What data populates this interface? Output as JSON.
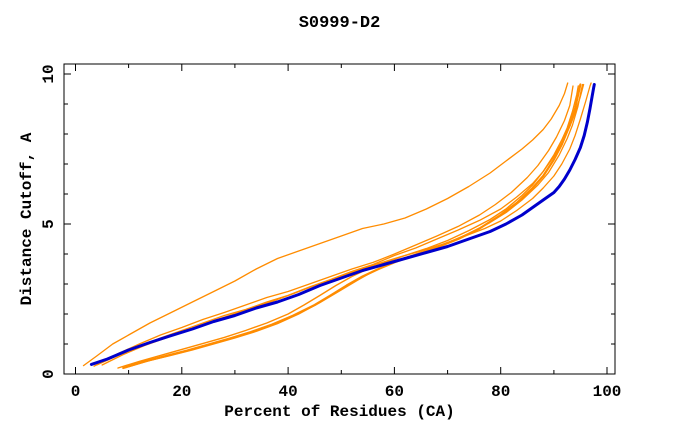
{
  "title": "S0999-D2",
  "chart_data": {
    "type": "line",
    "title": "S0999-D2",
    "xlabel": "Percent of Residues (CA)",
    "ylabel": "Distance Cutoff, A",
    "xlim": [
      -2.16,
      101.5
    ],
    "ylim": [
      0,
      10.333
    ],
    "grid": false,
    "legend": "none",
    "border_color": "#000000",
    "x_ticks": {
      "major": [
        0,
        20,
        40,
        60,
        80,
        100
      ],
      "minor": [
        10,
        30,
        50,
        70,
        90
      ]
    },
    "y_ticks": {
      "major": [
        0,
        5,
        10
      ],
      "minor": [
        1,
        2,
        3,
        4,
        6,
        7,
        8,
        9
      ]
    },
    "colors": {
      "model": "#ff8c00",
      "highlight": "#0000cc"
    },
    "series": [
      {
        "name": "model-outlier",
        "color": "#ff8c00",
        "width": 1.3,
        "points": [
          [
            1.5,
            0.28
          ],
          [
            4,
            0.6
          ],
          [
            7,
            1.0
          ],
          [
            10,
            1.3
          ],
          [
            14,
            1.7
          ],
          [
            18,
            2.05
          ],
          [
            22,
            2.4
          ],
          [
            26,
            2.75
          ],
          [
            30,
            3.1
          ],
          [
            34,
            3.5
          ],
          [
            38,
            3.85
          ],
          [
            42,
            4.1
          ],
          [
            46,
            4.35
          ],
          [
            50,
            4.6
          ],
          [
            54,
            4.85
          ],
          [
            58,
            5.0
          ],
          [
            62,
            5.2
          ],
          [
            66,
            5.5
          ],
          [
            70,
            5.85
          ],
          [
            74,
            6.25
          ],
          [
            78,
            6.7
          ],
          [
            81,
            7.1
          ],
          [
            84,
            7.5
          ],
          [
            86,
            7.8
          ],
          [
            88,
            8.15
          ],
          [
            89.5,
            8.5
          ],
          [
            91,
            8.95
          ],
          [
            92,
            9.35
          ],
          [
            92.6,
            9.7
          ]
        ]
      },
      {
        "name": "model-2",
        "color": "#ff8c00",
        "width": 1.3,
        "points": [
          [
            4,
            0.3
          ],
          [
            8,
            0.62
          ],
          [
            12,
            0.92
          ],
          [
            16,
            1.2
          ],
          [
            20,
            1.45
          ],
          [
            24,
            1.7
          ],
          [
            28,
            1.95
          ],
          [
            32,
            2.15
          ],
          [
            36,
            2.4
          ],
          [
            40,
            2.62
          ],
          [
            44,
            2.9
          ],
          [
            48,
            3.15
          ],
          [
            52,
            3.42
          ],
          [
            56,
            3.65
          ],
          [
            60,
            3.95
          ],
          [
            64,
            4.2
          ],
          [
            68,
            4.5
          ],
          [
            72,
            4.8
          ],
          [
            76,
            5.12
          ],
          [
            80,
            5.5
          ],
          [
            83,
            5.9
          ],
          [
            86,
            6.35
          ],
          [
            88,
            6.75
          ],
          [
            90,
            7.25
          ],
          [
            91.5,
            7.7
          ],
          [
            93,
            8.25
          ],
          [
            94,
            8.7
          ],
          [
            95,
            9.25
          ],
          [
            95.6,
            9.65
          ]
        ]
      },
      {
        "name": "model-3",
        "color": "#ff8c00",
        "width": 1.3,
        "points": [
          [
            3.5,
            0.26
          ],
          [
            8,
            0.68
          ],
          [
            12,
            1.0
          ],
          [
            16,
            1.3
          ],
          [
            20,
            1.55
          ],
          [
            24,
            1.82
          ],
          [
            28,
            2.05
          ],
          [
            32,
            2.3
          ],
          [
            36,
            2.55
          ],
          [
            40,
            2.75
          ],
          [
            44,
            3.0
          ],
          [
            48,
            3.25
          ],
          [
            52,
            3.5
          ],
          [
            56,
            3.72
          ],
          [
            60,
            4.0
          ],
          [
            64,
            4.3
          ],
          [
            68,
            4.6
          ],
          [
            72,
            4.92
          ],
          [
            76,
            5.3
          ],
          [
            79,
            5.65
          ],
          [
            82,
            6.05
          ],
          [
            85,
            6.55
          ],
          [
            87,
            6.95
          ],
          [
            89,
            7.45
          ],
          [
            90.5,
            7.9
          ],
          [
            92,
            8.45
          ],
          [
            93,
            8.95
          ],
          [
            93.6,
            9.6
          ]
        ]
      },
      {
        "name": "model-4",
        "color": "#ff8c00",
        "width": 1.4,
        "points": [
          [
            8,
            0.2
          ],
          [
            12,
            0.42
          ],
          [
            16,
            0.62
          ],
          [
            20,
            0.82
          ],
          [
            24,
            1.02
          ],
          [
            28,
            1.22
          ],
          [
            32,
            1.45
          ],
          [
            36,
            1.7
          ],
          [
            40,
            2.0
          ],
          [
            43,
            2.3
          ],
          [
            46,
            2.62
          ],
          [
            49,
            2.95
          ],
          [
            52,
            3.25
          ],
          [
            55,
            3.5
          ],
          [
            58,
            3.7
          ],
          [
            62,
            3.95
          ],
          [
            66,
            4.18
          ],
          [
            70,
            4.45
          ],
          [
            74,
            4.78
          ],
          [
            78,
            5.15
          ],
          [
            81,
            5.5
          ],
          [
            84,
            5.95
          ],
          [
            86,
            6.3
          ],
          [
            88,
            6.75
          ],
          [
            90,
            7.3
          ],
          [
            91.5,
            7.8
          ],
          [
            92.5,
            8.2
          ],
          [
            93.5,
            8.75
          ],
          [
            94.3,
            9.3
          ],
          [
            94.6,
            9.6
          ]
        ]
      },
      {
        "name": "model-5",
        "color": "#ff8c00",
        "width": 2.2,
        "points": [
          [
            9,
            0.2
          ],
          [
            13,
            0.42
          ],
          [
            17,
            0.6
          ],
          [
            21,
            0.78
          ],
          [
            25,
            0.98
          ],
          [
            29,
            1.18
          ],
          [
            33,
            1.4
          ],
          [
            37,
            1.65
          ],
          [
            41,
            1.95
          ],
          [
            45,
            2.3
          ],
          [
            48,
            2.62
          ],
          [
            51,
            2.95
          ],
          [
            54,
            3.25
          ],
          [
            57,
            3.5
          ],
          [
            60,
            3.72
          ],
          [
            64,
            3.98
          ],
          [
            68,
            4.22
          ],
          [
            72,
            4.5
          ],
          [
            76,
            4.85
          ],
          [
            80,
            5.3
          ],
          [
            83,
            5.7
          ],
          [
            86,
            6.2
          ],
          [
            88,
            6.6
          ],
          [
            90,
            7.15
          ],
          [
            91.5,
            7.65
          ],
          [
            93,
            8.3
          ],
          [
            94,
            8.85
          ],
          [
            94.8,
            9.5
          ],
          [
            95,
            9.65
          ]
        ]
      },
      {
        "name": "model-6",
        "color": "#ff8c00",
        "width": 1.3,
        "points": [
          [
            10,
            0.24
          ],
          [
            14,
            0.45
          ],
          [
            18,
            0.62
          ],
          [
            22,
            0.8
          ],
          [
            26,
            1.0
          ],
          [
            30,
            1.2
          ],
          [
            34,
            1.42
          ],
          [
            38,
            1.68
          ],
          [
            42,
            2.0
          ],
          [
            46,
            2.38
          ],
          [
            50,
            2.8
          ],
          [
            53,
            3.12
          ],
          [
            56,
            3.42
          ],
          [
            59,
            3.65
          ],
          [
            62,
            3.88
          ],
          [
            66,
            4.1
          ],
          [
            70,
            4.38
          ],
          [
            74,
            4.68
          ],
          [
            78,
            5.05
          ],
          [
            81,
            5.38
          ],
          [
            84,
            5.8
          ],
          [
            87,
            6.3
          ],
          [
            89,
            6.72
          ],
          [
            91,
            7.3
          ],
          [
            92.5,
            7.85
          ],
          [
            93.5,
            8.3
          ],
          [
            94.5,
            8.9
          ],
          [
            95.2,
            9.5
          ],
          [
            95.4,
            9.65
          ]
        ]
      },
      {
        "name": "model-7",
        "color": "#ff8c00",
        "width": 1.3,
        "points": [
          [
            5,
            0.3
          ],
          [
            9,
            0.65
          ],
          [
            13,
            0.95
          ],
          [
            17,
            1.2
          ],
          [
            21,
            1.45
          ],
          [
            25,
            1.72
          ],
          [
            29,
            1.95
          ],
          [
            33,
            2.18
          ],
          [
            37,
            2.42
          ],
          [
            41,
            2.68
          ],
          [
            45,
            2.95
          ],
          [
            49,
            3.2
          ],
          [
            53,
            3.45
          ],
          [
            57,
            3.68
          ],
          [
            61,
            3.9
          ],
          [
            65,
            4.1
          ],
          [
            69,
            4.32
          ],
          [
            73,
            4.58
          ],
          [
            77,
            4.85
          ],
          [
            80,
            5.1
          ],
          [
            83,
            5.45
          ],
          [
            86,
            5.85
          ],
          [
            88,
            6.2
          ],
          [
            90,
            6.6
          ],
          [
            91.5,
            7.0
          ],
          [
            93,
            7.5
          ],
          [
            94,
            7.95
          ],
          [
            95,
            8.5
          ],
          [
            96,
            9.1
          ],
          [
            96.8,
            9.6
          ],
          [
            97,
            9.7
          ]
        ]
      },
      {
        "name": "highlighted-model",
        "color": "#0000cc",
        "width": 3,
        "points": [
          [
            3,
            0.32
          ],
          [
            6,
            0.5
          ],
          [
            10,
            0.8
          ],
          [
            14,
            1.05
          ],
          [
            18,
            1.28
          ],
          [
            22,
            1.5
          ],
          [
            26,
            1.75
          ],
          [
            30,
            1.95
          ],
          [
            34,
            2.2
          ],
          [
            38,
            2.4
          ],
          [
            42,
            2.65
          ],
          [
            46,
            2.95
          ],
          [
            50,
            3.2
          ],
          [
            54,
            3.45
          ],
          [
            58,
            3.65
          ],
          [
            62,
            3.85
          ],
          [
            66,
            4.05
          ],
          [
            70,
            4.25
          ],
          [
            74,
            4.5
          ],
          [
            78,
            4.75
          ],
          [
            81,
            5.0
          ],
          [
            84,
            5.3
          ],
          [
            86,
            5.55
          ],
          [
            88,
            5.8
          ],
          [
            90,
            6.05
          ],
          [
            91,
            6.25
          ],
          [
            92,
            6.5
          ],
          [
            93,
            6.8
          ],
          [
            94,
            7.15
          ],
          [
            95,
            7.55
          ],
          [
            95.7,
            7.95
          ],
          [
            96.3,
            8.4
          ],
          [
            96.8,
            8.85
          ],
          [
            97.2,
            9.25
          ],
          [
            97.5,
            9.55
          ],
          [
            97.6,
            9.65
          ]
        ]
      }
    ]
  }
}
